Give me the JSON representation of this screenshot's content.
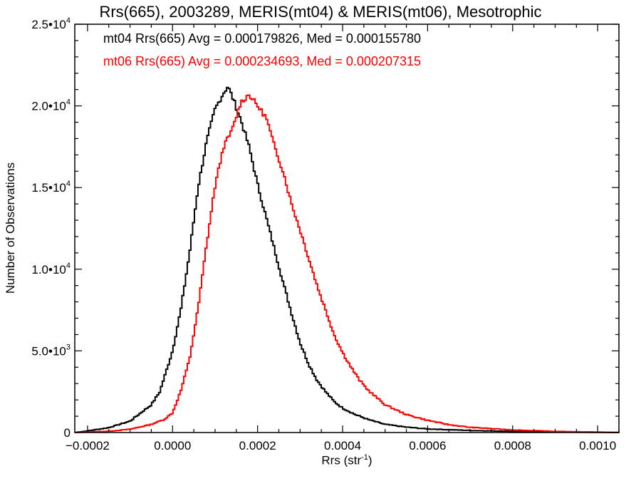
{
  "chart_data": {
    "type": "histogram-step",
    "title": "Rrs(665), 2003289, MERIS(mt04) & MERIS(mt06), Mesotrophic",
    "xlabel": "Rrs (str",
    "xlabel_sup": "-1",
    "xlabel_suffix": ")",
    "ylabel": "Number of Observations",
    "xlim": [
      -0.00023,
      0.00105
    ],
    "ylim": [
      0,
      25000
    ],
    "x_ticks": [
      -0.0002,
      0.0,
      0.0002,
      0.0004,
      0.0006,
      0.0008,
      0.001
    ],
    "x_tick_labels": [
      "−0.0002",
      "0.0000",
      "0.0002",
      "0.0004",
      "0.0006",
      "0.0008",
      "0.0010"
    ],
    "y_ticks": [
      0,
      5000,
      10000,
      15000,
      20000,
      25000
    ],
    "y_tick_labels": [
      {
        "mant": "0",
        "exp": ""
      },
      {
        "mant": "5.0•10",
        "exp": "3"
      },
      {
        "mant": "1.0•10",
        "exp": "4"
      },
      {
        "mant": "1.5•10",
        "exp": "4"
      },
      {
        "mant": "2.0•10",
        "exp": "4"
      },
      {
        "mant": "2.5•10",
        "exp": "4"
      }
    ],
    "grid": false,
    "legend_position": "top-left",
    "series": [
      {
        "name": "mt04",
        "color": "#000000",
        "legend_text": "mt04 Rrs(665) Avg = 0.000179826, Med = 0.000155780",
        "points": [
          [
            -0.00023,
            0
          ],
          [
            -0.0002,
            100
          ],
          [
            -0.00015,
            300
          ],
          [
            -0.0001,
            700
          ],
          [
            -5e-05,
            1700
          ],
          [
            -3e-05,
            2500
          ],
          [
            0.0,
            5000
          ],
          [
            2e-05,
            7600
          ],
          [
            4e-05,
            11000
          ],
          [
            6e-05,
            15000
          ],
          [
            8e-05,
            17800
          ],
          [
            0.0001,
            19800
          ],
          [
            0.00012,
            20800
          ],
          [
            0.00013,
            21200
          ],
          [
            0.00014,
            20600
          ],
          [
            0.00016,
            19200
          ],
          [
            0.00018,
            17500
          ],
          [
            0.0002,
            15200
          ],
          [
            0.00022,
            13200
          ],
          [
            0.00024,
            11200
          ],
          [
            0.00026,
            9200
          ],
          [
            0.00028,
            7300
          ],
          [
            0.0003,
            5500
          ],
          [
            0.00032,
            4200
          ],
          [
            0.00034,
            3200
          ],
          [
            0.00036,
            2500
          ],
          [
            0.00038,
            1900
          ],
          [
            0.0004,
            1500
          ],
          [
            0.00043,
            1100
          ],
          [
            0.00046,
            800
          ],
          [
            0.0005,
            500
          ],
          [
            0.00055,
            330
          ],
          [
            0.0006,
            220
          ],
          [
            0.0007,
            130
          ],
          [
            0.0008,
            70
          ],
          [
            0.0009,
            30
          ],
          [
            0.001,
            10
          ],
          [
            0.00105,
            0
          ]
        ]
      },
      {
        "name": "mt06",
        "color": "#ff0000",
        "legend_text": "mt06 Rrs(665) Avg = 0.000234693, Med = 0.000207315",
        "points": [
          [
            -0.00023,
            0
          ],
          [
            -0.00015,
            80
          ],
          [
            -0.0001,
            200
          ],
          [
            -5e-05,
            500
          ],
          [
            -2e-05,
            800
          ],
          [
            0.0,
            1200
          ],
          [
            2e-05,
            2600
          ],
          [
            4e-05,
            4500
          ],
          [
            6e-05,
            7600
          ],
          [
            8e-05,
            11500
          ],
          [
            0.0001,
            15100
          ],
          [
            0.00012,
            17500
          ],
          [
            0.00014,
            18500
          ],
          [
            0.00016,
            20200
          ],
          [
            0.00018,
            20700
          ],
          [
            0.0002,
            20000
          ],
          [
            0.00022,
            19300
          ],
          [
            0.00024,
            17500
          ],
          [
            0.00026,
            16000
          ],
          [
            0.00028,
            14000
          ],
          [
            0.0003,
            12400
          ],
          [
            0.00032,
            10700
          ],
          [
            0.00034,
            9000
          ],
          [
            0.00036,
            7500
          ],
          [
            0.00038,
            6000
          ],
          [
            0.0004,
            4900
          ],
          [
            0.00042,
            4000
          ],
          [
            0.00044,
            3200
          ],
          [
            0.00046,
            2600
          ],
          [
            0.0005,
            1700
          ],
          [
            0.00055,
            1100
          ],
          [
            0.0006,
            750
          ],
          [
            0.00065,
            480
          ],
          [
            0.0007,
            320
          ],
          [
            0.0008,
            160
          ],
          [
            0.0009,
            70
          ],
          [
            0.001,
            30
          ],
          [
            0.00105,
            10
          ]
        ]
      }
    ]
  }
}
